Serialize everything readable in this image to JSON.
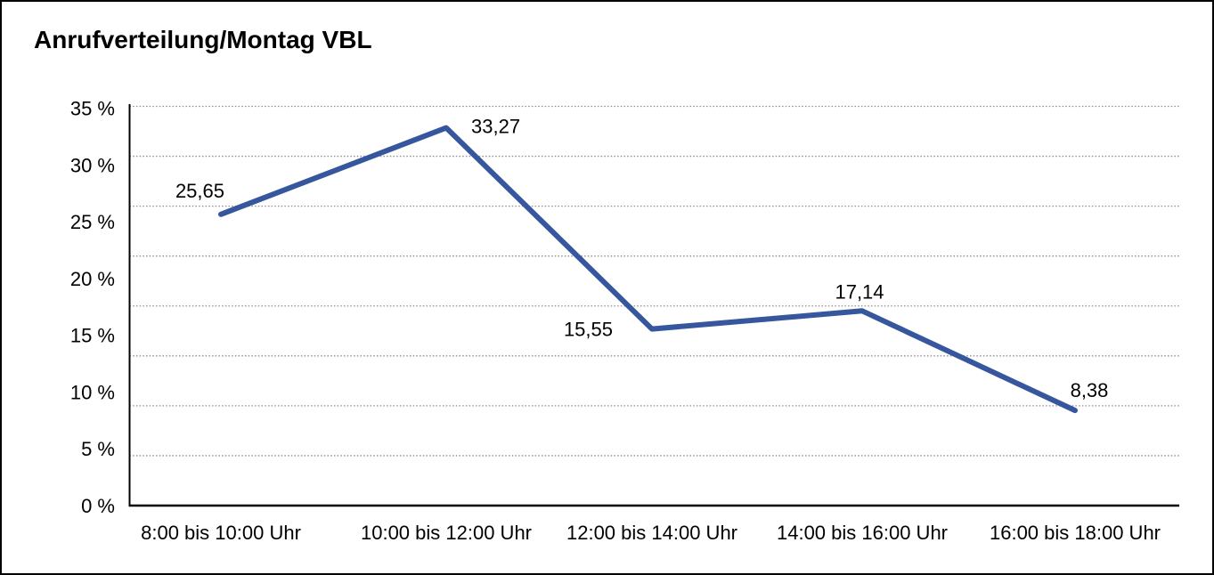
{
  "chart_data": {
    "type": "line",
    "title": "Anrufverteilung/Montag VBL",
    "categories": [
      "8:00 bis 10:00 Uhr",
      "10:00 bis 12:00 Uhr",
      "12:00 bis 14:00 Uhr",
      "14:00 bis 16:00 Uhr",
      "16:00 bis 18:00 Uhr"
    ],
    "values": [
      25.65,
      33.27,
      15.55,
      17.14,
      8.38
    ],
    "value_labels": [
      "25,65",
      "33,27",
      "15,55",
      "17,14",
      "8,38"
    ],
    "y_ticks": [
      "35 %",
      "30 %",
      "25 %",
      "20 %",
      "15 %",
      "10 %",
      "5 %",
      "0 %"
    ],
    "ylim": [
      0,
      35
    ],
    "grid": "horizontal-dotted",
    "gridline_intervals": 8,
    "legend": "none",
    "colors": {
      "line": "#36569E",
      "axis": "#000000",
      "grid": "#8C8C8C",
      "text": "#000000",
      "background": "#FFFFFF",
      "frame_border": "#000000"
    }
  }
}
